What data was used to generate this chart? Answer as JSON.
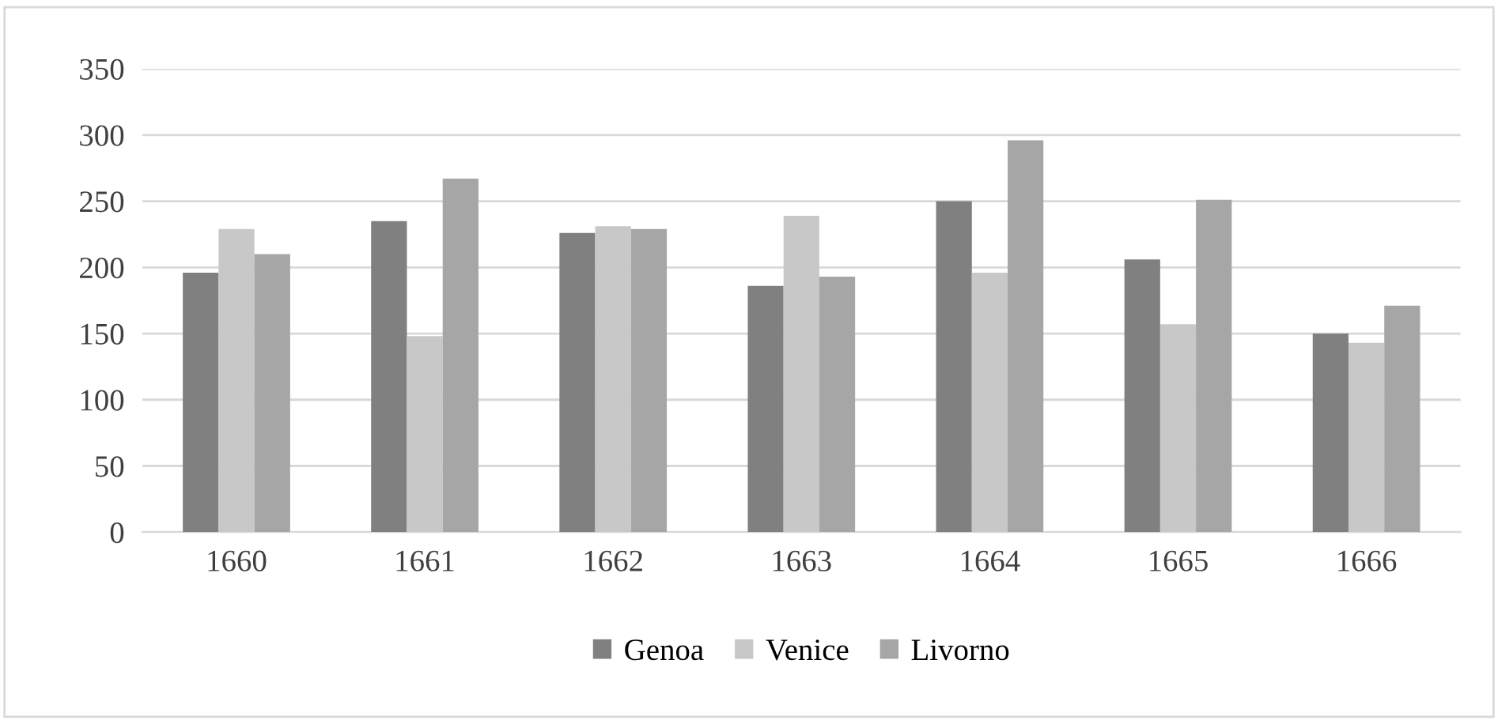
{
  "chart_data": {
    "type": "bar",
    "categories": [
      "1660",
      "1661",
      "1662",
      "1663",
      "1664",
      "1665",
      "1666"
    ],
    "series": [
      {
        "name": "Genoa",
        "color": "#808080",
        "values": [
          196,
          235,
          226,
          186,
          250,
          206,
          150
        ]
      },
      {
        "name": "Venice",
        "color": "#c8c8c8",
        "values": [
          229,
          148,
          231,
          239,
          196,
          157,
          143
        ]
      },
      {
        "name": "Livorno",
        "color": "#a6a6a6",
        "values": [
          210,
          267,
          229,
          193,
          296,
          251,
          171
        ]
      }
    ],
    "ylim": [
      0,
      350
    ],
    "yticks": [
      0,
      50,
      100,
      150,
      200,
      250,
      300,
      350
    ],
    "grid": "y",
    "legend": "bottom"
  }
}
